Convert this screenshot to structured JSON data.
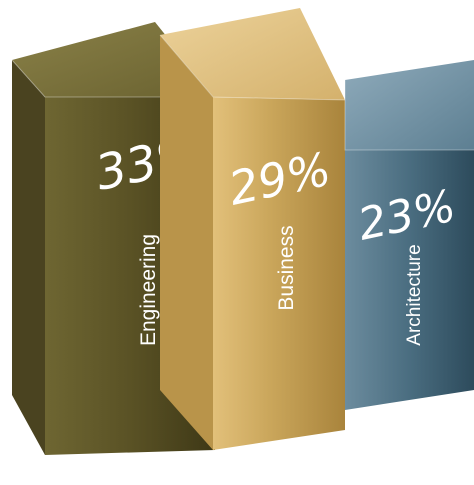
{
  "chart_data": {
    "type": "bar",
    "categories": [
      "Engineering",
      "Business",
      "Architecture"
    ],
    "values": [
      33,
      29,
      23
    ],
    "value_labels": [
      "33%",
      "29%",
      "23%"
    ],
    "unit": "%",
    "legend": "none",
    "grid": false,
    "colors": {
      "Engineering": "#5f5624",
      "Business": "#c9a55a",
      "Architecture": "#3f6478"
    }
  }
}
